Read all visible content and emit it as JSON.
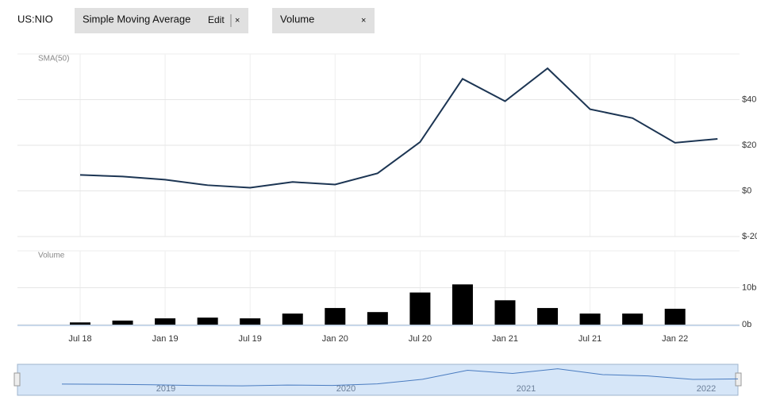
{
  "toolbar": {
    "symbol": "US:NIO",
    "chips": [
      {
        "label": "Simple Moving Average",
        "edit": "Edit",
        "close": "×"
      },
      {
        "label": "Volume",
        "close": "×"
      }
    ]
  },
  "chart_data": [
    {
      "type": "line",
      "label": "SMA(50)",
      "categories": [
        "Jul 18",
        null,
        "Jan 19",
        null,
        "Jul 19",
        null,
        "Jan 20",
        null,
        "Jul 20",
        null,
        "Jan 21",
        null,
        "Jul 21",
        null,
        "Jan 22",
        null
      ],
      "series": [
        {
          "color": "#1c3553",
          "values": [
            7.0,
            6.3,
            4.9,
            2.5,
            1.4,
            3.9,
            2.8,
            7.7,
            21.4,
            49.1,
            39.3,
            53.7,
            35.8,
            31.9,
            21.1,
            22.8
          ]
        }
      ],
      "ylim": [
        -20,
        60
      ],
      "yticks": [
        {
          "value": -20,
          "label": "$-20"
        },
        {
          "value": 0,
          "label": "$0"
        },
        {
          "value": 20,
          "label": "$20"
        },
        {
          "value": 40,
          "label": "$40"
        }
      ],
      "grid": true
    },
    {
      "type": "bar",
      "label": "Volume",
      "series": [
        {
          "color": "#000000",
          "values": [
            0.6,
            1.1,
            1.7,
            1.9,
            1.7,
            3.0,
            4.5,
            3.4,
            8.7,
            10.9,
            6.6,
            4.5,
            3.0,
            3.0,
            4.3,
            null
          ]
        }
      ],
      "ylim": [
        0,
        20
      ],
      "yticks": [
        {
          "value": 0,
          "label": "0b"
        },
        {
          "value": 10,
          "label": "10b"
        }
      ],
      "grid": true
    }
  ],
  "navigator": {
    "labels": [
      "2019",
      "2020",
      "2021",
      "2022"
    ]
  }
}
